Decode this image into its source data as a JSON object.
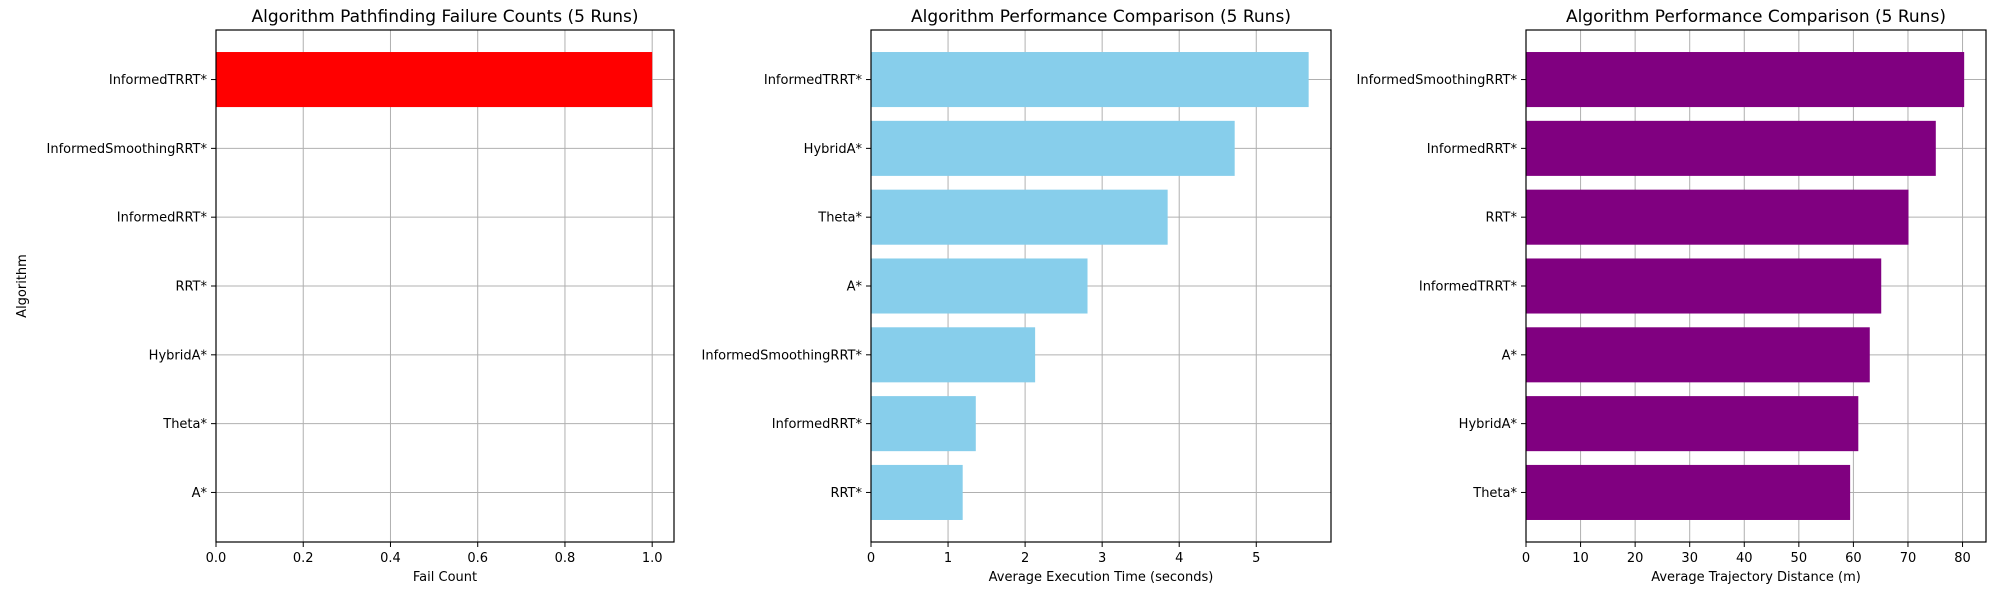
{
  "chart_data": [
    {
      "type": "bar",
      "orientation": "horizontal",
      "title": "Algorithm Pathfinding Failure Counts (5 Runs)",
      "xlabel": "Fail Count",
      "ylabel": "Algorithm",
      "categories": [
        "InformedTRRT*",
        "InformedSmoothingRRT*",
        "InformedRRT*",
        "RRT*",
        "HybridA*",
        "Theta*",
        "A*"
      ],
      "values": [
        1,
        0,
        0,
        0,
        0,
        0,
        0
      ],
      "xlim": [
        0,
        1.05
      ],
      "xticks": [
        "0.0",
        "0.2",
        "0.4",
        "0.6",
        "0.8",
        "1.0"
      ],
      "color": "#ff0000",
      "grid": true,
      "legend": "none"
    },
    {
      "type": "bar",
      "orientation": "horizontal",
      "title": "Algorithm Performance Comparison (5 Runs)",
      "xlabel": "Average Execution Time (seconds)",
      "ylabel": "",
      "categories": [
        "InformedTRRT*",
        "HybridA*",
        "Theta*",
        "A*",
        "InformedSmoothingRRT*",
        "InformedRRT*",
        "RRT*"
      ],
      "values": [
        5.68,
        4.72,
        3.85,
        2.81,
        2.13,
        1.36,
        1.19
      ],
      "xlim": [
        0,
        5.97
      ],
      "xticks": [
        "0",
        "1",
        "2",
        "3",
        "4",
        "5"
      ],
      "color": "#87ceeb",
      "grid": true,
      "legend": "none"
    },
    {
      "type": "bar",
      "orientation": "horizontal",
      "title": "Algorithm Performance Comparison (5 Runs)",
      "xlabel": "Average Trajectory Distance (m)",
      "ylabel": "",
      "categories": [
        "InformedSmoothingRRT*",
        "InformedRRT*",
        "RRT*",
        "InformedTRRT*",
        "A*",
        "HybridA*",
        "Theta*"
      ],
      "values": [
        80.3,
        75.1,
        70.1,
        65.1,
        63.0,
        60.9,
        59.4
      ],
      "xlim": [
        0,
        84.3
      ],
      "xticks": [
        "0",
        "10",
        "20",
        "30",
        "40",
        "50",
        "60",
        "70",
        "80"
      ],
      "color": "#800080",
      "grid": true,
      "legend": "none"
    }
  ]
}
